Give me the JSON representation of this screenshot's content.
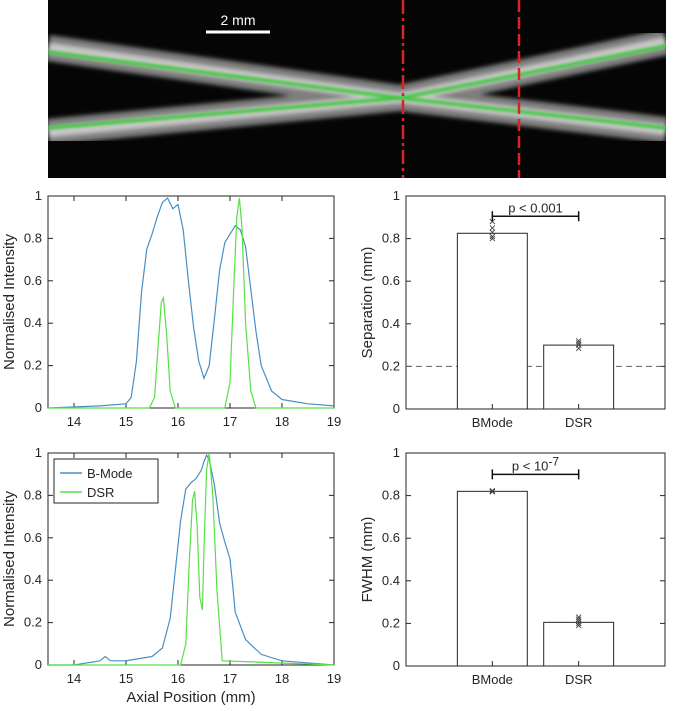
{
  "image_panel": {
    "scalebar_label": "2 mm"
  },
  "colors": {
    "bmode": "#4a8fc4",
    "dsr": "#56e046",
    "marker_line": "#dd2222",
    "axis": "#262626"
  },
  "chart_data": [
    {
      "id": "profile_top",
      "type": "line",
      "xlabel": "",
      "ylabel": "Normalised Intensity",
      "xlim": [
        13.5,
        19
      ],
      "ylim": [
        0,
        1
      ],
      "xticks": [
        "14",
        "15",
        "16",
        "17",
        "18",
        "19"
      ],
      "yticks": [
        "0",
        "0.2",
        "0.4",
        "0.6",
        "0.8",
        "1"
      ],
      "series": [
        {
          "key": "bmode",
          "x": [
            13.5,
            14.5,
            15.0,
            15.1,
            15.2,
            15.3,
            15.4,
            15.5,
            15.6,
            15.7,
            15.8,
            15.9,
            16.0,
            16.1,
            16.2,
            16.3,
            16.4,
            16.5,
            16.6,
            16.7,
            16.8,
            16.9,
            17.0,
            17.1,
            17.2,
            17.3,
            17.4,
            17.5,
            17.6,
            17.8,
            18.0,
            18.5,
            19.0
          ],
          "y": [
            0.0,
            0.01,
            0.02,
            0.05,
            0.22,
            0.55,
            0.75,
            0.82,
            0.9,
            0.97,
            0.99,
            0.94,
            0.96,
            0.84,
            0.6,
            0.38,
            0.22,
            0.14,
            0.2,
            0.42,
            0.65,
            0.78,
            0.82,
            0.86,
            0.84,
            0.76,
            0.56,
            0.36,
            0.2,
            0.08,
            0.04,
            0.02,
            0.01
          ]
        },
        {
          "key": "dsr",
          "x": [
            13.5,
            15.45,
            15.55,
            15.62,
            15.68,
            15.72,
            15.78,
            15.85,
            15.95,
            16.9,
            17.0,
            17.07,
            17.13,
            17.18,
            17.23,
            17.3,
            17.4,
            17.5,
            19.0
          ],
          "y": [
            0.0,
            0.0,
            0.05,
            0.3,
            0.5,
            0.52,
            0.35,
            0.08,
            0.0,
            0.0,
            0.12,
            0.55,
            0.9,
            0.99,
            0.85,
            0.4,
            0.08,
            0.0,
            0.0
          ]
        }
      ]
    },
    {
      "id": "profile_bottom",
      "type": "line",
      "xlabel": "Axial Position (mm)",
      "ylabel": "Normalised Intensity",
      "xlim": [
        13.5,
        19
      ],
      "ylim": [
        0,
        1
      ],
      "xticks": [
        "14",
        "15",
        "16",
        "17",
        "18",
        "19"
      ],
      "yticks": [
        "0",
        "0.2",
        "0.4",
        "0.6",
        "0.8",
        "1"
      ],
      "legend": {
        "placement": "top-left",
        "entries": [
          "B-Mode",
          "DSR"
        ]
      },
      "series": [
        {
          "key": "bmode",
          "name": "B-Mode",
          "x": [
            13.5,
            14.0,
            14.5,
            14.6,
            14.7,
            15.0,
            15.5,
            15.7,
            15.85,
            15.95,
            16.05,
            16.15,
            16.25,
            16.35,
            16.45,
            16.5,
            16.55,
            16.6,
            16.7,
            16.8,
            16.9,
            17.0,
            17.05,
            17.1,
            17.3,
            17.6,
            18.0,
            19.0
          ],
          "y": [
            0.0,
            0.0,
            0.02,
            0.04,
            0.02,
            0.02,
            0.04,
            0.08,
            0.22,
            0.45,
            0.68,
            0.83,
            0.86,
            0.88,
            0.92,
            0.96,
            0.99,
            0.97,
            0.85,
            0.67,
            0.58,
            0.5,
            0.38,
            0.25,
            0.12,
            0.05,
            0.02,
            0.0
          ]
        },
        {
          "key": "dsr",
          "name": "DSR",
          "x": [
            13.5,
            16.05,
            16.15,
            16.22,
            16.28,
            16.32,
            16.37,
            16.42,
            16.47,
            16.5,
            16.55,
            16.6,
            16.67,
            16.75,
            16.85,
            19.0
          ],
          "y": [
            0.0,
            0.0,
            0.1,
            0.5,
            0.78,
            0.82,
            0.65,
            0.32,
            0.26,
            0.55,
            0.92,
            1.0,
            0.8,
            0.35,
            0.02,
            0.0
          ]
        }
      ]
    },
    {
      "id": "separation_bar",
      "type": "bar",
      "categories": [
        "BMode",
        "DSR"
      ],
      "values": [
        0.825,
        0.3
      ],
      "ylabel": "Separation (mm)",
      "ylim": [
        0,
        1
      ],
      "yticks": [
        "0",
        "0.2",
        "0.4",
        "0.6",
        "0.8",
        "1"
      ],
      "reference_line": 0.2,
      "points": [
        [
          0.8,
          0.81,
          0.83,
          0.85,
          0.88
        ],
        [
          0.285,
          0.3,
          0.31,
          0.32
        ]
      ],
      "annotation": {
        "prefix": "p < 0.001",
        "sup": ""
      }
    },
    {
      "id": "fwhm_bar",
      "type": "bar",
      "categories": [
        "BMode",
        "DSR"
      ],
      "values": [
        0.82,
        0.205
      ],
      "ylabel": "FWHM (mm)",
      "ylim": [
        0,
        1
      ],
      "yticks": [
        "0",
        "0.2",
        "0.4",
        "0.6",
        "0.8",
        "1"
      ],
      "points": [
        [
          0.818,
          0.82,
          0.823
        ],
        [
          0.19,
          0.2,
          0.21,
          0.22,
          0.23
        ]
      ],
      "annotation": {
        "prefix": "p < 10",
        "sup": "-7"
      }
    }
  ]
}
